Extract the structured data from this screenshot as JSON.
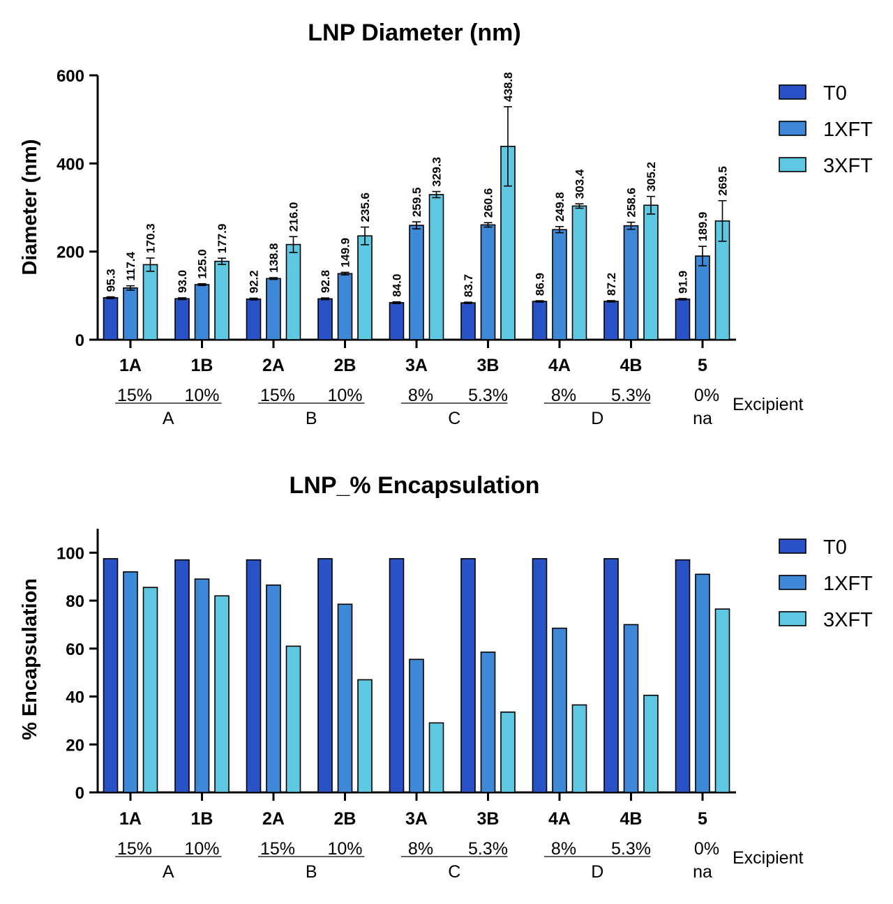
{
  "colors": {
    "T0": "#2a52c7",
    "1XFT": "#3e88d8",
    "3XFT": "#5ec7e1"
  },
  "chart_data": [
    {
      "type": "bar",
      "title": "LNP Diameter (nm)",
      "xlabel": "",
      "ylabel": "Diameter (nm)",
      "ylim": [
        0,
        600
      ],
      "yticks": [
        "0",
        "200",
        "400",
        "600"
      ],
      "legend_position": "right",
      "categories": [
        "1A",
        "1B",
        "2A",
        "2B",
        "3A",
        "3B",
        "4A",
        "4B",
        "5"
      ],
      "excipient_label": "Excipient",
      "excipients": [
        "15%",
        "10%",
        "15%",
        "10%",
        "8%",
        "5.3%",
        "8%",
        "5.3%",
        "0%"
      ],
      "groups": [
        {
          "label": "A",
          "span": [
            0,
            1
          ]
        },
        {
          "label": "B",
          "span": [
            2,
            3
          ]
        },
        {
          "label": "C",
          "span": [
            4,
            5
          ]
        },
        {
          "label": "D",
          "span": [
            6,
            7
          ]
        },
        {
          "label": "na",
          "span": [
            8,
            8
          ]
        }
      ],
      "series": [
        {
          "name": "T0",
          "values": [
            95.3,
            93.0,
            92.2,
            92.8,
            84.0,
            83.7,
            86.9,
            87.2,
            91.9
          ],
          "labels": [
            "95.3",
            "93.0",
            "92.2",
            "92.8",
            "84.0",
            "83.7",
            "86.9",
            "87.2",
            "91.9"
          ],
          "errors": [
            2,
            2,
            2,
            2,
            2,
            1.5,
            1.5,
            1.5,
            1.5
          ]
        },
        {
          "name": "1XFT",
          "values": [
            117.4,
            125.0,
            138.8,
            149.9,
            259.5,
            260.6,
            249.8,
            258.6,
            189.9
          ],
          "labels": [
            "117.4",
            "125.0",
            "138.8",
            "149.9",
            "259.5",
            "260.6",
            "249.8",
            "258.6",
            "189.9"
          ],
          "errors": [
            5,
            2,
            2,
            3,
            8,
            5,
            7,
            8,
            22
          ]
        },
        {
          "name": "3XFT",
          "values": [
            170.3,
            177.9,
            216.0,
            235.6,
            329.3,
            438.8,
            303.4,
            305.2,
            269.5
          ],
          "labels": [
            "170.3",
            "177.9",
            "216.0",
            "235.6",
            "329.3",
            "438.8",
            "303.4",
            "305.2",
            "269.5"
          ],
          "errors": [
            15,
            7,
            18,
            20,
            7,
            90,
            5,
            20,
            46
          ]
        }
      ]
    },
    {
      "type": "bar",
      "title": "LNP_% Encapsulation",
      "xlabel": "",
      "ylabel": "% Encapsulation",
      "ylim": [
        0,
        110
      ],
      "yticks": [
        "0",
        "20",
        "40",
        "60",
        "80",
        "100"
      ],
      "legend_position": "right",
      "categories": [
        "1A",
        "1B",
        "2A",
        "2B",
        "3A",
        "3B",
        "4A",
        "4B",
        "5"
      ],
      "excipient_label": "Excipient",
      "excipients": [
        "15%",
        "10%",
        "15%",
        "10%",
        "8%",
        "5.3%",
        "8%",
        "5.3%",
        "0%"
      ],
      "groups": [
        {
          "label": "A",
          "span": [
            0,
            1
          ]
        },
        {
          "label": "B",
          "span": [
            2,
            3
          ]
        },
        {
          "label": "C",
          "span": [
            4,
            5
          ]
        },
        {
          "label": "D",
          "span": [
            6,
            7
          ]
        },
        {
          "label": "na",
          "span": [
            8,
            8
          ]
        }
      ],
      "series": [
        {
          "name": "T0",
          "values": [
            97.5,
            97,
            97,
            97.5,
            97.5,
            97.5,
            97.5,
            97.5,
            97
          ]
        },
        {
          "name": "1XFT",
          "values": [
            92,
            89,
            86.5,
            78.5,
            55.5,
            58.5,
            68.5,
            70,
            91
          ]
        },
        {
          "name": "3XFT",
          "values": [
            85.5,
            82,
            61,
            47,
            29,
            33.5,
            36.5,
            40.5,
            76.5
          ]
        }
      ]
    }
  ]
}
